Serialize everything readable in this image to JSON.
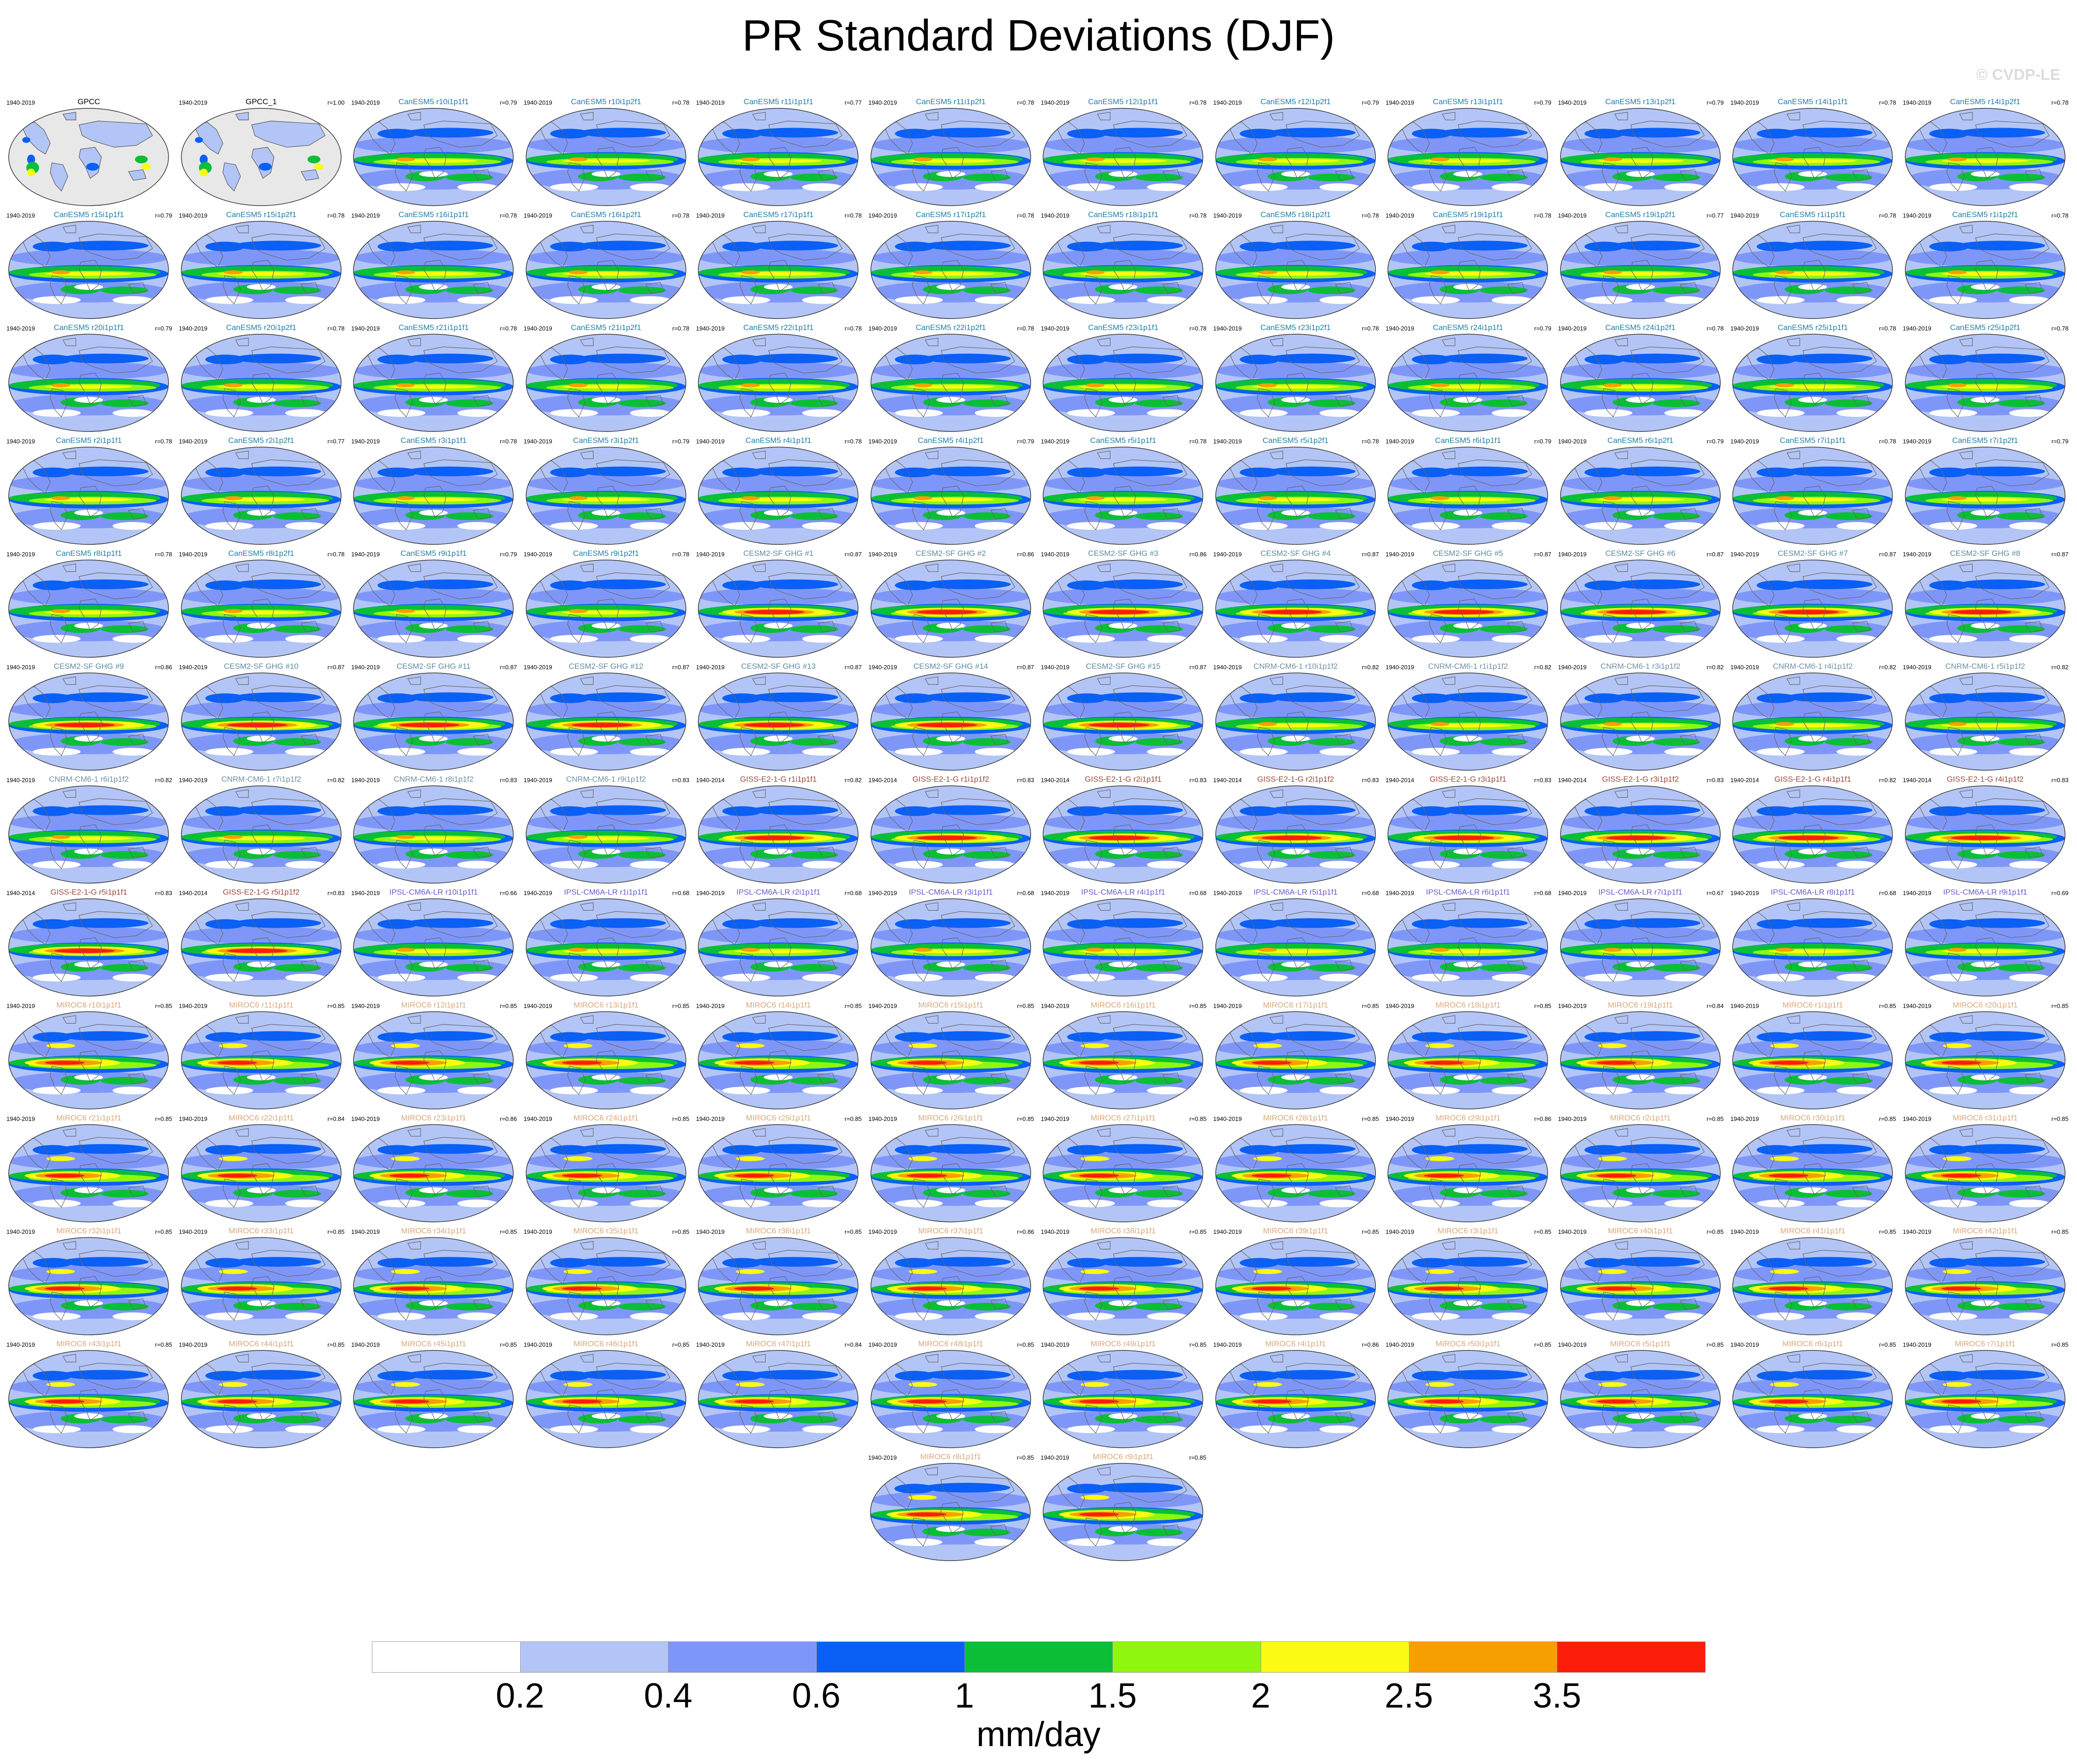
{
  "title": "PR Standard Deviations (DJF)",
  "watermark": "© CVDP-LE",
  "colorbar": {
    "units": "mm/day",
    "colors": [
      "#ffffff",
      "#b3c5f6",
      "#7f96f9",
      "#0a5ff5",
      "#0abf35",
      "#8ff70f",
      "#fbfa12",
      "#f89f00",
      "#fb1d0a"
    ],
    "tick_labels": [
      "0.2",
      "0.4",
      "0.6",
      "1",
      "1.5",
      "2",
      "2.5",
      "3.5"
    ]
  },
  "groups": {
    "obs": {
      "color": "#000000",
      "land": "#e8e8e8"
    },
    "canesm": {
      "color": "#1f7fa8",
      "pattern": "canesm"
    },
    "cesm": {
      "color": "#5a8aa0",
      "pattern": "strong"
    },
    "cnrm": {
      "color": "#6f8fa3",
      "pattern": "canesm"
    },
    "giss": {
      "color": "#9a4a3a",
      "pattern": "strong"
    },
    "ipsl": {
      "color": "#6a5ad0",
      "pattern": "canesm"
    },
    "miroc": {
      "color": "#d9a77a",
      "pattern": "miroc"
    }
  },
  "panels": [
    {
      "title": "GPCC",
      "years": "1940-2019",
      "r": "",
      "group": "obs"
    },
    {
      "title": "GPCC_1",
      "years": "1940-2019",
      "r": "r=1.00",
      "group": "obs"
    },
    {
      "title": "CanESM5 r10i1p1f1",
      "years": "1940-2019",
      "r": "r=0.79",
      "group": "canesm"
    },
    {
      "title": "CanESM5 r10i1p2f1",
      "years": "1940-2019",
      "r": "r=0.78",
      "group": "canesm"
    },
    {
      "title": "CanESM5 r11i1p1f1",
      "years": "1940-2019",
      "r": "r=0.77",
      "group": "canesm"
    },
    {
      "title": "CanESM5 r11i1p2f1",
      "years": "1940-2019",
      "r": "r=0.78",
      "group": "canesm"
    },
    {
      "title": "CanESM5 r12i1p1f1",
      "years": "1940-2019",
      "r": "r=0.78",
      "group": "canesm"
    },
    {
      "title": "CanESM5 r12i1p2f1",
      "years": "1940-2019",
      "r": "r=0.79",
      "group": "canesm"
    },
    {
      "title": "CanESM5 r13i1p1f1",
      "years": "1940-2019",
      "r": "r=0.79",
      "group": "canesm"
    },
    {
      "title": "CanESM5 r13i1p2f1",
      "years": "1940-2019",
      "r": "r=0.79",
      "group": "canesm"
    },
    {
      "title": "CanESM5 r14i1p1f1",
      "years": "1940-2019",
      "r": "r=0.78",
      "group": "canesm"
    },
    {
      "title": "CanESM5 r14i1p2f1",
      "years": "1940-2019",
      "r": "r=0.78",
      "group": "canesm"
    },
    {
      "title": "CanESM5 r15i1p1f1",
      "years": "1940-2019",
      "r": "r=0.79",
      "group": "canesm"
    },
    {
      "title": "CanESM5 r15i1p2f1",
      "years": "1940-2019",
      "r": "r=0.78",
      "group": "canesm"
    },
    {
      "title": "CanESM5 r16i1p1f1",
      "years": "1940-2019",
      "r": "r=0.78",
      "group": "canesm"
    },
    {
      "title": "CanESM5 r16i1p2f1",
      "years": "1940-2019",
      "r": "r=0.78",
      "group": "canesm"
    },
    {
      "title": "CanESM5 r17i1p1f1",
      "years": "1940-2019",
      "r": "r=0.78",
      "group": "canesm"
    },
    {
      "title": "CanESM5 r17i1p2f1",
      "years": "1940-2019",
      "r": "r=0.78",
      "group": "canesm"
    },
    {
      "title": "CanESM5 r18i1p1f1",
      "years": "1940-2019",
      "r": "r=0.78",
      "group": "canesm"
    },
    {
      "title": "CanESM5 r18i1p2f1",
      "years": "1940-2019",
      "r": "r=0.78",
      "group": "canesm"
    },
    {
      "title": "CanESM5 r19i1p1f1",
      "years": "1940-2019",
      "r": "r=0.78",
      "group": "canesm"
    },
    {
      "title": "CanESM5 r19i1p2f1",
      "years": "1940-2019",
      "r": "r=0.77",
      "group": "canesm"
    },
    {
      "title": "CanESM5 r1i1p1f1",
      "years": "1940-2019",
      "r": "r=0.78",
      "group": "canesm"
    },
    {
      "title": "CanESM5 r1i1p2f1",
      "years": "1940-2019",
      "r": "r=0.78",
      "group": "canesm"
    },
    {
      "title": "CanESM5 r20i1p1f1",
      "years": "1940-2019",
      "r": "r=0.79",
      "group": "canesm"
    },
    {
      "title": "CanESM5 r20i1p2f1",
      "years": "1940-2019",
      "r": "r=0.78",
      "group": "canesm"
    },
    {
      "title": "CanESM5 r21i1p1f1",
      "years": "1940-2019",
      "r": "r=0.78",
      "group": "canesm"
    },
    {
      "title": "CanESM5 r21i1p2f1",
      "years": "1940-2019",
      "r": "r=0.78",
      "group": "canesm"
    },
    {
      "title": "CanESM5 r22i1p1f1",
      "years": "1940-2019",
      "r": "r=0.78",
      "group": "canesm"
    },
    {
      "title": "CanESM5 r22i1p2f1",
      "years": "1940-2019",
      "r": "r=0.78",
      "group": "canesm"
    },
    {
      "title": "CanESM5 r23i1p1f1",
      "years": "1940-2019",
      "r": "r=0.78",
      "group": "canesm"
    },
    {
      "title": "CanESM5 r23i1p2f1",
      "years": "1940-2019",
      "r": "r=0.78",
      "group": "canesm"
    },
    {
      "title": "CanESM5 r24i1p1f1",
      "years": "1940-2019",
      "r": "r=0.79",
      "group": "canesm"
    },
    {
      "title": "CanESM5 r24i1p2f1",
      "years": "1940-2019",
      "r": "r=0.78",
      "group": "canesm"
    },
    {
      "title": "CanESM5 r25i1p1f1",
      "years": "1940-2019",
      "r": "r=0.78",
      "group": "canesm"
    },
    {
      "title": "CanESM5 r25i1p2f1",
      "years": "1940-2019",
      "r": "r=0.78",
      "group": "canesm"
    },
    {
      "title": "CanESM5 r2i1p1f1",
      "years": "1940-2019",
      "r": "r=0.78",
      "group": "canesm"
    },
    {
      "title": "CanESM5 r2i1p2f1",
      "years": "1940-2019",
      "r": "r=0.77",
      "group": "canesm"
    },
    {
      "title": "CanESM5 r3i1p1f1",
      "years": "1940-2019",
      "r": "r=0.78",
      "group": "canesm"
    },
    {
      "title": "CanESM5 r3i1p2f1",
      "years": "1940-2019",
      "r": "r=0.79",
      "group": "canesm"
    },
    {
      "title": "CanESM5 r4i1p1f1",
      "years": "1940-2019",
      "r": "r=0.78",
      "group": "canesm"
    },
    {
      "title": "CanESM5 r4i1p2f1",
      "years": "1940-2019",
      "r": "r=0.79",
      "group": "canesm"
    },
    {
      "title": "CanESM5 r5i1p1f1",
      "years": "1940-2019",
      "r": "r=0.78",
      "group": "canesm"
    },
    {
      "title": "CanESM5 r5i1p2f1",
      "years": "1940-2019",
      "r": "r=0.78",
      "group": "canesm"
    },
    {
      "title": "CanESM5 r6i1p1f1",
      "years": "1940-2019",
      "r": "r=0.79",
      "group": "canesm"
    },
    {
      "title": "CanESM5 r6i1p2f1",
      "years": "1940-2019",
      "r": "r=0.79",
      "group": "canesm"
    },
    {
      "title": "CanESM5 r7i1p1f1",
      "years": "1940-2019",
      "r": "r=0.78",
      "group": "canesm"
    },
    {
      "title": "CanESM5 r7i1p2f1",
      "years": "1940-2019",
      "r": "r=0.79",
      "group": "canesm"
    },
    {
      "title": "CanESM5 r8i1p1f1",
      "years": "1940-2019",
      "r": "r=0.78",
      "group": "canesm"
    },
    {
      "title": "CanESM5 r8i1p2f1",
      "years": "1940-2019",
      "r": "r=0.78",
      "group": "canesm"
    },
    {
      "title": "CanESM5 r9i1p1f1",
      "years": "1940-2019",
      "r": "r=0.79",
      "group": "canesm"
    },
    {
      "title": "CanESM5 r9i1p2f1",
      "years": "1940-2019",
      "r": "r=0.78",
      "group": "canesm"
    },
    {
      "title": "CESM2-SF GHG #1",
      "years": "1940-2019",
      "r": "r=0.87",
      "group": "cesm"
    },
    {
      "title": "CESM2-SF GHG #2",
      "years": "1940-2019",
      "r": "r=0.86",
      "group": "cesm"
    },
    {
      "title": "CESM2-SF GHG #3",
      "years": "1940-2019",
      "r": "r=0.86",
      "group": "cesm"
    },
    {
      "title": "CESM2-SF GHG #4",
      "years": "1940-2019",
      "r": "r=0.87",
      "group": "cesm"
    },
    {
      "title": "CESM2-SF GHG #5",
      "years": "1940-2019",
      "r": "r=0.87",
      "group": "cesm"
    },
    {
      "title": "CESM2-SF GHG #6",
      "years": "1940-2019",
      "r": "r=0.87",
      "group": "cesm"
    },
    {
      "title": "CESM2-SF GHG #7",
      "years": "1940-2019",
      "r": "r=0.87",
      "group": "cesm"
    },
    {
      "title": "CESM2-SF GHG #8",
      "years": "1940-2019",
      "r": "r=0.87",
      "group": "cesm"
    },
    {
      "title": "CESM2-SF GHG #9",
      "years": "1940-2019",
      "r": "r=0.86",
      "group": "cesm"
    },
    {
      "title": "CESM2-SF GHG #10",
      "years": "1940-2019",
      "r": "r=0.87",
      "group": "cesm"
    },
    {
      "title": "CESM2-SF GHG #11",
      "years": "1940-2019",
      "r": "r=0.87",
      "group": "cesm"
    },
    {
      "title": "CESM2-SF GHG #12",
      "years": "1940-2019",
      "r": "r=0.87",
      "group": "cesm"
    },
    {
      "title": "CESM2-SF GHG #13",
      "years": "1940-2019",
      "r": "r=0.87",
      "group": "cesm"
    },
    {
      "title": "CESM2-SF GHG #14",
      "years": "1940-2019",
      "r": "r=0.87",
      "group": "cesm"
    },
    {
      "title": "CESM2-SF GHG #15",
      "years": "1940-2019",
      "r": "r=0.87",
      "group": "cesm"
    },
    {
      "title": "CNRM-CM6-1 r10i1p1f2",
      "years": "1940-2019",
      "r": "r=0.82",
      "group": "cnrm"
    },
    {
      "title": "CNRM-CM6-1 r1i1p1f2",
      "years": "1940-2019",
      "r": "r=0.82",
      "group": "cnrm"
    },
    {
      "title": "CNRM-CM6-1 r3i1p1f2",
      "years": "1940-2019",
      "r": "r=0.82",
      "group": "cnrm"
    },
    {
      "title": "CNRM-CM6-1 r4i1p1f2",
      "years": "1940-2019",
      "r": "r=0.82",
      "group": "cnrm"
    },
    {
      "title": "CNRM-CM6-1 r5i1p1f2",
      "years": "1940-2019",
      "r": "r=0.82",
      "group": "cnrm"
    },
    {
      "title": "CNRM-CM6-1 r6i1p1f2",
      "years": "1940-2019",
      "r": "r=0.82",
      "group": "cnrm"
    },
    {
      "title": "CNRM-CM6-1 r7i1p1f2",
      "years": "1940-2019",
      "r": "r=0.82",
      "group": "cnrm"
    },
    {
      "title": "CNRM-CM6-1 r8i1p1f2",
      "years": "1940-2019",
      "r": "r=0.83",
      "group": "cnrm"
    },
    {
      "title": "CNRM-CM6-1 r9i1p1f2",
      "years": "1940-2019",
      "r": "r=0.83",
      "group": "cnrm"
    },
    {
      "title": "GISS-E2-1-G r1i1p1f1",
      "years": "1940-2014",
      "r": "r=0.82",
      "group": "giss"
    },
    {
      "title": "GISS-E2-1-G r1i1p1f2",
      "years": "1940-2014",
      "r": "r=0.83",
      "group": "giss"
    },
    {
      "title": "GISS-E2-1-G r2i1p1f1",
      "years": "1940-2014",
      "r": "r=0.83",
      "group": "giss"
    },
    {
      "title": "GISS-E2-1-G r2i1p1f2",
      "years": "1940-2014",
      "r": "r=0.83",
      "group": "giss"
    },
    {
      "title": "GISS-E2-1-G r3i1p1f1",
      "years": "1940-2014",
      "r": "r=0.83",
      "group": "giss"
    },
    {
      "title": "GISS-E2-1-G r3i1p1f2",
      "years": "1940-2014",
      "r": "r=0.83",
      "group": "giss"
    },
    {
      "title": "GISS-E2-1-G r4i1p1f1",
      "years": "1940-2014",
      "r": "r=0.82",
      "group": "giss"
    },
    {
      "title": "GISS-E2-1-G r4i1p1f2",
      "years": "1940-2014",
      "r": "r=0.83",
      "group": "giss"
    },
    {
      "title": "GISS-E2-1-G r5i1p1f1",
      "years": "1940-2014",
      "r": "r=0.83",
      "group": "giss"
    },
    {
      "title": "GISS-E2-1-G r5i1p1f2",
      "years": "1940-2014",
      "r": "r=0.83",
      "group": "giss"
    },
    {
      "title": "IPSL-CM6A-LR r10i1p1f1",
      "years": "1940-2019",
      "r": "r=0.66",
      "group": "ipsl"
    },
    {
      "title": "IPSL-CM6A-LR r1i1p1f1",
      "years": "1940-2019",
      "r": "r=0.68",
      "group": "ipsl"
    },
    {
      "title": "IPSL-CM6A-LR r2i1p1f1",
      "years": "1940-2019",
      "r": "r=0.68",
      "group": "ipsl"
    },
    {
      "title": "IPSL-CM6A-LR r3i1p1f1",
      "years": "1940-2019",
      "r": "r=0.68",
      "group": "ipsl"
    },
    {
      "title": "IPSL-CM6A-LR r4i1p1f1",
      "years": "1940-2019",
      "r": "r=0.68",
      "group": "ipsl"
    },
    {
      "title": "IPSL-CM6A-LR r5i1p1f1",
      "years": "1940-2019",
      "r": "r=0.68",
      "group": "ipsl"
    },
    {
      "title": "IPSL-CM6A-LR r6i1p1f1",
      "years": "1940-2019",
      "r": "r=0.68",
      "group": "ipsl"
    },
    {
      "title": "IPSL-CM6A-LR r7i1p1f1",
      "years": "1940-2019",
      "r": "r=0.67",
      "group": "ipsl"
    },
    {
      "title": "IPSL-CM6A-LR r8i1p1f1",
      "years": "1940-2019",
      "r": "r=0.68",
      "group": "ipsl"
    },
    {
      "title": "IPSL-CM6A-LR r9i1p1f1",
      "years": "1940-2019",
      "r": "r=0.69",
      "group": "ipsl"
    },
    {
      "title": "MIROC6 r10i1p1f1",
      "years": "1940-2019",
      "r": "r=0.85",
      "group": "miroc"
    },
    {
      "title": "MIROC6 r11i1p1f1",
      "years": "1940-2019",
      "r": "r=0.85",
      "group": "miroc"
    },
    {
      "title": "MIROC6 r12i1p1f1",
      "years": "1940-2019",
      "r": "r=0.85",
      "group": "miroc"
    },
    {
      "title": "MIROC6 r13i1p1f1",
      "years": "1940-2019",
      "r": "r=0.85",
      "group": "miroc"
    },
    {
      "title": "MIROC6 r14i1p1f1",
      "years": "1940-2019",
      "r": "r=0.85",
      "group": "miroc"
    },
    {
      "title": "MIROC6 r15i1p1f1",
      "years": "1940-2019",
      "r": "r=0.85",
      "group": "miroc"
    },
    {
      "title": "MIROC6 r16i1p1f1",
      "years": "1940-2019",
      "r": "r=0.85",
      "group": "miroc"
    },
    {
      "title": "MIROC6 r17i1p1f1",
      "years": "1940-2019",
      "r": "r=0.85",
      "group": "miroc"
    },
    {
      "title": "MIROC6 r18i1p1f1",
      "years": "1940-2019",
      "r": "r=0.85",
      "group": "miroc"
    },
    {
      "title": "MIROC6 r19i1p1f1",
      "years": "1940-2019",
      "r": "r=0.84",
      "group": "miroc"
    },
    {
      "title": "MIROC6 r1i1p1f1",
      "years": "1940-2019",
      "r": "r=0.85",
      "group": "miroc"
    },
    {
      "title": "MIROC6 r20i1p1f1",
      "years": "1940-2019",
      "r": "r=0.85",
      "group": "miroc"
    },
    {
      "title": "MIROC6 r21i1p1f1",
      "years": "1940-2019",
      "r": "r=0.85",
      "group": "miroc"
    },
    {
      "title": "MIROC6 r22i1p1f1",
      "years": "1940-2019",
      "r": "r=0.84",
      "group": "miroc"
    },
    {
      "title": "MIROC6 r23i1p1f1",
      "years": "1940-2019",
      "r": "r=0.86",
      "group": "miroc"
    },
    {
      "title": "MIROC6 r24i1p1f1",
      "years": "1940-2019",
      "r": "r=0.85",
      "group": "miroc"
    },
    {
      "title": "MIROC6 r25i1p1f1",
      "years": "1940-2019",
      "r": "r=0.85",
      "group": "miroc"
    },
    {
      "title": "MIROC6 r26i1p1f1",
      "years": "1940-2019",
      "r": "r=0.85",
      "group": "miroc"
    },
    {
      "title": "MIROC6 r27i1p1f1",
      "years": "1940-2019",
      "r": "r=0.85",
      "group": "miroc"
    },
    {
      "title": "MIROC6 r28i1p1f1",
      "years": "1940-2019",
      "r": "r=0.85",
      "group": "miroc"
    },
    {
      "title": "MIROC6 r29i1p1f1",
      "years": "1940-2019",
      "r": "r=0.86",
      "group": "miroc"
    },
    {
      "title": "MIROC6 r2i1p1f1",
      "years": "1940-2019",
      "r": "r=0.85",
      "group": "miroc"
    },
    {
      "title": "MIROC6 r30i1p1f1",
      "years": "1940-2019",
      "r": "r=0.85",
      "group": "miroc"
    },
    {
      "title": "MIROC6 r31i1p1f1",
      "years": "1940-2019",
      "r": "r=0.85",
      "group": "miroc"
    },
    {
      "title": "MIROC6 r32i1p1f1",
      "years": "1940-2019",
      "r": "r=0.85",
      "group": "miroc"
    },
    {
      "title": "MIROC6 r33i1p1f1",
      "years": "1940-2019",
      "r": "r=0.85",
      "group": "miroc"
    },
    {
      "title": "MIROC6 r34i1p1f1",
      "years": "1940-2019",
      "r": "r=0.85",
      "group": "miroc"
    },
    {
      "title": "MIROC6 r35i1p1f1",
      "years": "1940-2019",
      "r": "r=0.85",
      "group": "miroc"
    },
    {
      "title": "MIROC6 r36i1p1f1",
      "years": "1940-2019",
      "r": "r=0.85",
      "group": "miroc"
    },
    {
      "title": "MIROC6 r37i1p1f1",
      "years": "1940-2019",
      "r": "r=0.86",
      "group": "miroc"
    },
    {
      "title": "MIROC6 r38i1p1f1",
      "years": "1940-2019",
      "r": "r=0.85",
      "group": "miroc"
    },
    {
      "title": "MIROC6 r39i1p1f1",
      "years": "1940-2019",
      "r": "r=0.85",
      "group": "miroc"
    },
    {
      "title": "MIROC6 r3i1p1f1",
      "years": "1940-2019",
      "r": "r=0.85",
      "group": "miroc"
    },
    {
      "title": "MIROC6 r40i1p1f1",
      "years": "1940-2019",
      "r": "r=0.85",
      "group": "miroc"
    },
    {
      "title": "MIROC6 r41i1p1f1",
      "years": "1940-2019",
      "r": "r=0.85",
      "group": "miroc"
    },
    {
      "title": "MIROC6 r42i1p1f1",
      "years": "1940-2019",
      "r": "r=0.85",
      "group": "miroc"
    },
    {
      "title": "MIROC6 r43i1p1f1",
      "years": "1940-2019",
      "r": "r=0.85",
      "group": "miroc"
    },
    {
      "title": "MIROC6 r44i1p1f1",
      "years": "1940-2019",
      "r": "r=0.85",
      "group": "miroc"
    },
    {
      "title": "MIROC6 r45i1p1f1",
      "years": "1940-2019",
      "r": "r=0.85",
      "group": "miroc"
    },
    {
      "title": "MIROC6 r46i1p1f1",
      "years": "1940-2019",
      "r": "r=0.85",
      "group": "miroc"
    },
    {
      "title": "MIROC6 r47i1p1f1",
      "years": "1940-2019",
      "r": "r=0.84",
      "group": "miroc"
    },
    {
      "title": "MIROC6 r48i1p1f1",
      "years": "1940-2019",
      "r": "r=0.85",
      "group": "miroc"
    },
    {
      "title": "MIROC6 r49i1p1f1",
      "years": "1940-2019",
      "r": "r=0.85",
      "group": "miroc"
    },
    {
      "title": "MIROC6 r4i1p1f1",
      "years": "1940-2019",
      "r": "r=0.86",
      "group": "miroc"
    },
    {
      "title": "MIROC6 r50i1p1f1",
      "years": "1940-2019",
      "r": "r=0.85",
      "group": "miroc"
    },
    {
      "title": "MIROC6 r5i1p1f1",
      "years": "1940-2019",
      "r": "r=0.85",
      "group": "miroc"
    },
    {
      "title": "MIROC6 r6i1p1f1",
      "years": "1940-2019",
      "r": "r=0.85",
      "group": "miroc"
    },
    {
      "title": "MIROC6 r7i1p1f1",
      "years": "1940-2019",
      "r": "r=0.85",
      "group": "miroc"
    },
    {
      "title": "MIROC6 r8i1p1f1",
      "years": "1940-2019",
      "r": "r=0.85",
      "group": "miroc"
    },
    {
      "title": "MIROC6 r9i1p1f1",
      "years": "1940-2019",
      "r": "r=0.85",
      "group": "miroc"
    }
  ]
}
